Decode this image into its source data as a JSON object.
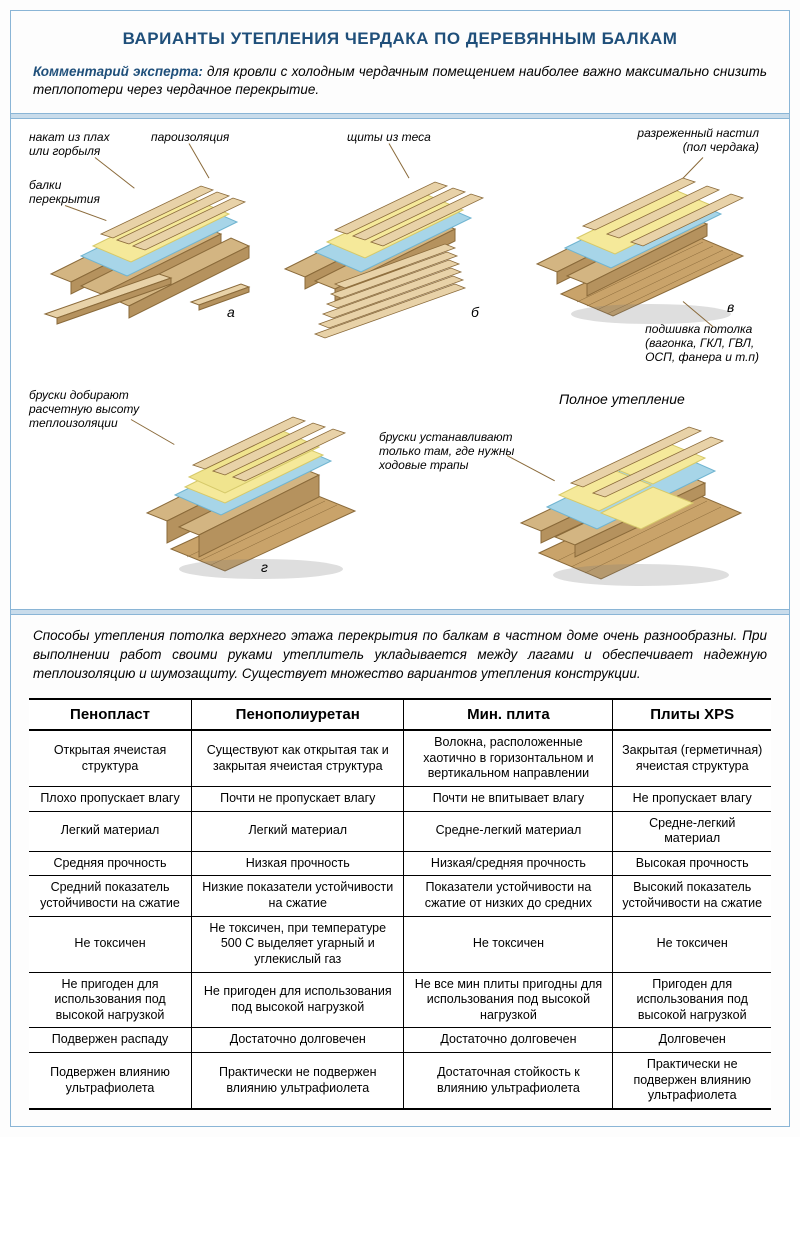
{
  "colors": {
    "page_bg": "#fdfdfd",
    "border": "#8ab5d6",
    "divider_fill": "#c9dceb",
    "title_color": "#1f4f7a",
    "comment_label_color": "#1f4f7a",
    "wood_light": "#e8d2a8",
    "wood_mid": "#d3b582",
    "wood_dark": "#b5925e",
    "beam_edge": "#8a6a3a",
    "insulation_yellow": "#f5e99a",
    "membrane_blue": "#a7d5e8",
    "floor_hatch": "#c9a36a",
    "shadow": "#7a7a7a"
  },
  "title": "ВАРИАНТЫ УТЕПЛЕНИЯ ЧЕРДАКА ПО ДЕРЕВЯННЫМ БАЛКАМ",
  "comment": {
    "label": "Комментарий эксперта:",
    "text": " для кровли с холодным чердачным помещением наиболее важно максимально снизить теплопотери через чердачное перекрытие."
  },
  "diagram": {
    "labels": {
      "nakat": "накат из плах\nили горбыля",
      "paroizol": "пароизоляция",
      "balki": "балки\nперекрытия",
      "shchity": "щиты из теса",
      "nastil": "разреженный настил\n(пол чердака)",
      "podshivka": "подшивка потолка\n(вагонка, ГКЛ, ГВЛ,\nОСП, фанера и т.п)",
      "bruski_vysota": "бруски добирают\nрасчетную высоту\nтеплоизоляции",
      "bruski_trapy": "бруски устанавливают\nтолько там, где нужны\nходовые трапы",
      "polnoe": "Полное утепление"
    },
    "letters": {
      "a": "а",
      "b": "б",
      "v": "в",
      "g": "г"
    }
  },
  "description": "Способы утепления потолка верхнего этажа перекрытия по балкам в частном доме очень разнообразны. При выполнении работ своими руками утеплитель укладывается между лагами и обеспечивает надежную теплоизоляцию и шумозащиту. Существует множество вариантов утепления конструкции.",
  "table": {
    "headers": [
      "Пенопласт",
      "Пенополиуретан",
      "Мин. плита",
      "Плиты XPS"
    ],
    "rows": [
      [
        "Открытая ячеистая структура",
        "Существуют как открытая так и закрытая ячеистая структура",
        "Волокна, расположенные хаотично в горизонтальном и вертикальном направлении",
        "Закрытая (герметичная) ячеистая структура"
      ],
      [
        "Плохо пропускает влагу",
        "Почти не пропускает влагу",
        "Почти не впитывает влагу",
        "Не пропускает влагу"
      ],
      [
        "Легкий материал",
        "Легкий материал",
        "Средне-легкий материал",
        "Средне-легкий материал"
      ],
      [
        "Средняя прочность",
        "Низкая прочность",
        "Низкая/средняя прочность",
        "Высокая прочность"
      ],
      [
        "Средний показатель устойчивости на сжатие",
        "Низкие показатели устойчивости на сжатие",
        "Показатели устойчивости на сжатие от низких до средних",
        "Высокий показатель устойчивости на сжатие"
      ],
      [
        "Не токсичен",
        "Не токсичен, при температуре 500 С выделяет угарный и углекислый газ",
        "Не токсичен",
        "Не токсичен"
      ],
      [
        "Не пригоден для использования под высокой нагрузкой",
        "Не пригоден для использования под высокой нагрузкой",
        "Не все мин плиты пригодны для использования под высокой нагрузкой",
        "Пригоден для использования под высокой нагрузкой"
      ],
      [
        "Подвержен распаду",
        "Достаточно долговечен",
        "Достаточно долговечен",
        "Долговечен"
      ],
      [
        "Подвержен влиянию ультрафиолета",
        "Практически не подвержен влиянию ультрафиолета",
        "Достаточная стойкость к влиянию ультрафиолета",
        "Практически не подвержен влиянию ультрафиолета"
      ]
    ]
  }
}
